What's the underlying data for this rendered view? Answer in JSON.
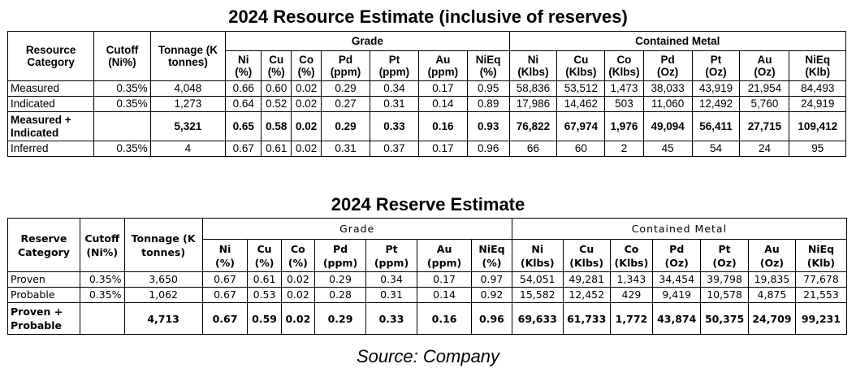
{
  "resource": {
    "title": "2024 Resource Estimate (inclusive of reserves)",
    "headers": {
      "category": "Resource Category",
      "cutoff": "Cutoff (Ni%)",
      "tonnage": "Tonnage (K tonnes)",
      "grade": "Grade",
      "contained": "Contained Metal",
      "grade_cols": [
        {
          "name": "Ni",
          "unit": "(%)"
        },
        {
          "name": "Cu",
          "unit": "(%)"
        },
        {
          "name": "Co",
          "unit": "(%)"
        },
        {
          "name": "Pd",
          "unit": "(ppm)"
        },
        {
          "name": "Pt",
          "unit": "(ppm)"
        },
        {
          "name": "Au",
          "unit": "(ppm)"
        },
        {
          "name": "NiEq",
          "unit": "(%)"
        }
      ],
      "contained_cols": [
        {
          "name": "Ni",
          "unit": "(Klbs)"
        },
        {
          "name": "Cu",
          "unit": "(Klbs)"
        },
        {
          "name": "Co",
          "unit": "(Klbs)"
        },
        {
          "name": "Pd",
          "unit": "(Oz)"
        },
        {
          "name": "Pt",
          "unit": "(Oz)"
        },
        {
          "name": "Au",
          "unit": "(Oz)"
        },
        {
          "name": "NiEq",
          "unit": "(Klb)"
        }
      ]
    },
    "rows": [
      {
        "category": "Measured",
        "cutoff": "0.35%",
        "tonnage": "4,048",
        "grade": [
          "0.66",
          "0.60",
          "0.02",
          "0.29",
          "0.34",
          "0.17",
          "0.95"
        ],
        "contained": [
          "58,836",
          "53,512",
          "1,473",
          "38,033",
          "43,919",
          "21,954",
          "84,493"
        ]
      },
      {
        "category": "Indicated",
        "cutoff": "0.35%",
        "tonnage": "1,273",
        "grade": [
          "0.64",
          "0.52",
          "0.02",
          "0.27",
          "0.31",
          "0.14",
          "0.89"
        ],
        "contained": [
          "17,986",
          "14,462",
          "503",
          "11,060",
          "12,492",
          "5,760",
          "24,919"
        ]
      },
      {
        "category": "Measured + Indicated",
        "cutoff": "",
        "tonnage": "5,321",
        "grade": [
          "0.65",
          "0.58",
          "0.02",
          "0.29",
          "0.33",
          "0.16",
          "0.93"
        ],
        "contained": [
          "76,822",
          "67,974",
          "1,976",
          "49,094",
          "56,411",
          "27,715",
          "109,412"
        ]
      },
      {
        "category": "Inferred",
        "cutoff": "0.35%",
        "tonnage": "4",
        "grade": [
          "0.67",
          "0.61",
          "0.02",
          "0.31",
          "0.37",
          "0.17",
          "0.96"
        ],
        "contained": [
          "66",
          "60",
          "2",
          "45",
          "54",
          "24",
          "95"
        ]
      }
    ]
  },
  "reserve": {
    "title": "2024 Reserve Estimate",
    "headers": {
      "category": "Reserve Category",
      "cutoff": "Cutoff (Ni%)",
      "tonnage": "Tonnage (K tonnes)",
      "grade": "Grade",
      "contained": "Contained Metal",
      "grade_cols": [
        {
          "name": "Ni",
          "unit": "(%)"
        },
        {
          "name": "Cu",
          "unit": "(%)"
        },
        {
          "name": "Co",
          "unit": "(%)"
        },
        {
          "name": "Pd",
          "unit": "(ppm)"
        },
        {
          "name": "Pt",
          "unit": "(ppm)"
        },
        {
          "name": "Au",
          "unit": "(ppm)"
        },
        {
          "name": "NiEq",
          "unit": "(%)"
        }
      ],
      "contained_cols": [
        {
          "name": "Ni",
          "unit": "(Klbs)"
        },
        {
          "name": "Cu",
          "unit": "(Klbs)"
        },
        {
          "name": "Co",
          "unit": "(Klbs)"
        },
        {
          "name": "Pd",
          "unit": "(Oz)"
        },
        {
          "name": "Pt",
          "unit": "(Oz)"
        },
        {
          "name": "Au",
          "unit": "(Oz)"
        },
        {
          "name": "NiEq",
          "unit": "(Klb)"
        }
      ]
    },
    "rows": [
      {
        "category": "Proven",
        "cutoff": "0.35%",
        "tonnage": "3,650",
        "grade": [
          "0.67",
          "0.61",
          "0.02",
          "0.29",
          "0.34",
          "0.17",
          "0.97"
        ],
        "contained": [
          "54,051",
          "49,281",
          "1,343",
          "34,454",
          "39,798",
          "19,835",
          "77,678"
        ]
      },
      {
        "category": "Probable",
        "cutoff": "0.35%",
        "tonnage": "1,062",
        "grade": [
          "0.67",
          "0.53",
          "0.02",
          "0.28",
          "0.31",
          "0.14",
          "0.92"
        ],
        "contained": [
          "15,582",
          "12,452",
          "429",
          "9,419",
          "10,578",
          "4,875",
          "21,553"
        ]
      },
      {
        "category": "Proven + Probable",
        "cutoff": "",
        "tonnage": "4,713",
        "grade": [
          "0.67",
          "0.59",
          "0.02",
          "0.29",
          "0.33",
          "0.16",
          "0.96"
        ],
        "contained": [
          "69,633",
          "61,733",
          "1,772",
          "43,874",
          "50,375",
          "24,709",
          "99,231"
        ]
      }
    ]
  },
  "source": "Source: Company"
}
